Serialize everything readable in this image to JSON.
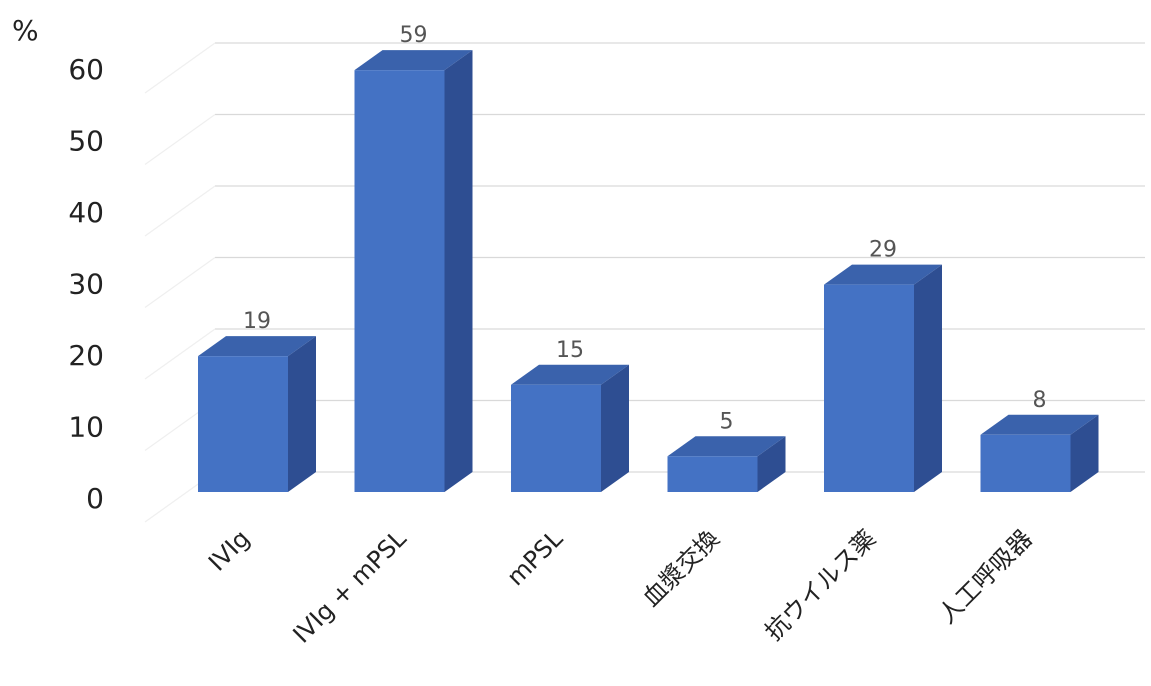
{
  "chart_data": {
    "type": "bar",
    "style": "3d-column",
    "categories": [
      "IVIg",
      "IVIg + mPSL",
      "mPSL",
      "血漿交換",
      "抗ウイルス薬",
      "人工呼吸器"
    ],
    "values": [
      19,
      59,
      15,
      5,
      29,
      8
    ],
    "data_labels": [
      "19",
      "59",
      "15",
      "5",
      "29",
      "8"
    ],
    "y_unit": "%",
    "ylim": [
      0,
      60
    ],
    "yticks": [
      0,
      10,
      20,
      30,
      40,
      50,
      60
    ],
    "ytick_labels": [
      "0",
      "10",
      "20",
      "30",
      "40",
      "50",
      "60"
    ],
    "grid": true,
    "legend": "none",
    "colors": {
      "front": "#4472C4",
      "side": "#2E4E92",
      "top": "#3A62AC",
      "grid": "#D9D9D9"
    }
  }
}
